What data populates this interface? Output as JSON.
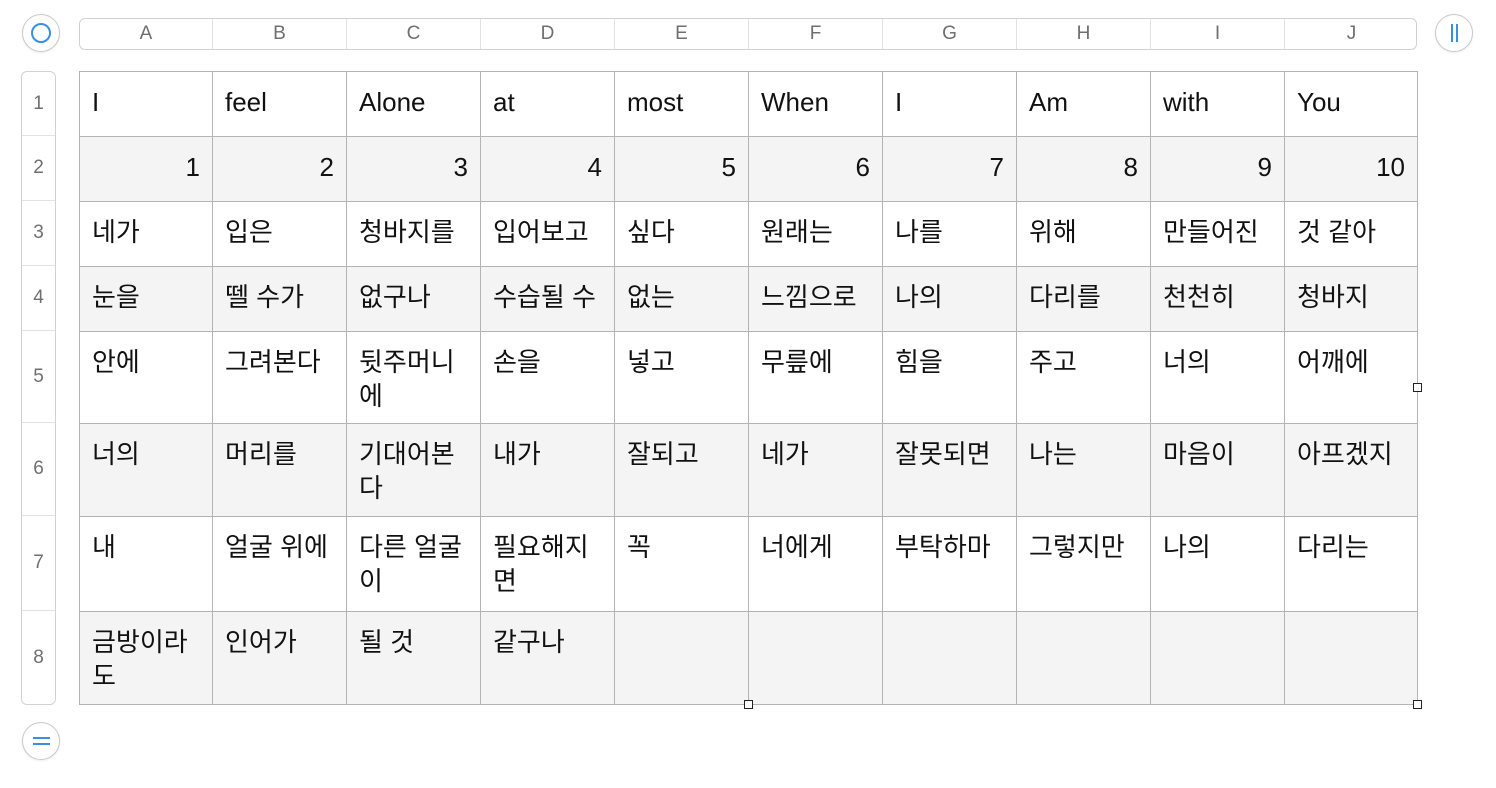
{
  "columns": [
    "A",
    "B",
    "C",
    "D",
    "E",
    "F",
    "G",
    "H",
    "I",
    "J"
  ],
  "rows": [
    "1",
    "2",
    "3",
    "4",
    "5",
    "6",
    "7",
    "8"
  ],
  "cells": [
    [
      "I",
      "feel",
      "Alone",
      "at",
      "most",
      "When",
      "I",
      "Am",
      "with",
      "You"
    ],
    [
      "1",
      "2",
      "3",
      "4",
      "5",
      "6",
      "7",
      "8",
      "9",
      "10"
    ],
    [
      "네가",
      "입은",
      "청바지를",
      "입어보고",
      "싶다",
      "원래는",
      "나를",
      "위해",
      "만들어진",
      "것 같아"
    ],
    [
      "눈을",
      "뗄 수가",
      "없구나",
      "수습될 수",
      "없는",
      "느낌으로",
      "나의",
      "다리를",
      "천천히",
      "청바지"
    ],
    [
      "안에",
      "그려본다",
      "뒷주머니에",
      "손을",
      "넣고",
      "무릎에",
      "힘을",
      "주고",
      "너의",
      "어깨에"
    ],
    [
      "너의",
      "머리를",
      "기대어본다",
      "내가",
      "잘되고",
      "네가",
      "잘못되면",
      "나는",
      "마음이",
      "아프겠지"
    ],
    [
      "내",
      "얼굴 위에",
      "다른 얼굴이",
      "필요해지면",
      "꼭",
      "너에게",
      "부탁하마",
      "그렇지만",
      "나의",
      "다리는"
    ],
    [
      "금방이라도",
      "인어가",
      "될 것",
      "같구나",
      "",
      "",
      "",
      "",
      "",
      ""
    ]
  ],
  "numeric_rows": [
    1
  ],
  "icons": {
    "select_all": "circle-icon",
    "add_column": "vertical-bars-icon",
    "add_row": "horizontal-bars-icon"
  },
  "colors": {
    "accent": "#3b8fe0",
    "alt_row": "#f4f4f4",
    "grid": "#b4b4b4"
  }
}
